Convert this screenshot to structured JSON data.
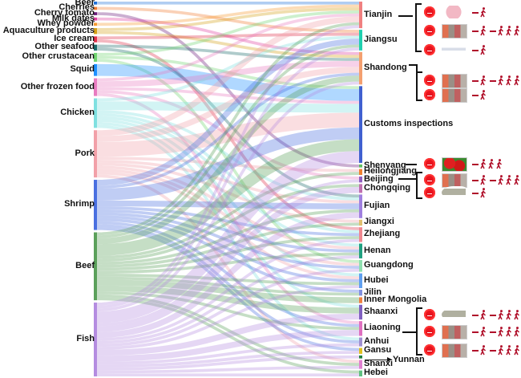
{
  "left_nodes": [
    {
      "name": "Beer",
      "color": "#1e6fd9"
    },
    {
      "name": "Cherries",
      "color": "#f07a30"
    },
    {
      "name": "Cherry tomato",
      "color": "#6a1b7a"
    },
    {
      "name": "Milk dates",
      "color": "#e040a0"
    },
    {
      "name": "Whey powder",
      "color": "#f59a30"
    },
    {
      "name": "Aquaculture products",
      "color": "#d4a017"
    },
    {
      "name": "Ice cream",
      "color": "#e0304a"
    },
    {
      "name": "Other seafood",
      "color": "#1a6b6b"
    },
    {
      "name": "Other crustacean",
      "color": "#6fd46f"
    },
    {
      "name": "Squid",
      "color": "#1e90ff"
    },
    {
      "name": "Other frozen food",
      "color": "#e87bc0"
    },
    {
      "name": "Chicken",
      "color": "#7fe0e0"
    },
    {
      "name": "Pork",
      "color": "#f2a0a8"
    },
    {
      "name": "Shrimp",
      "color": "#4a6fe0"
    },
    {
      "name": "Beef",
      "color": "#5aa05a"
    },
    {
      "name": "Fish",
      "color": "#b48ce0"
    }
  ],
  "right_nodes": [
    {
      "name": "Tianjin",
      "color": "#f08080"
    },
    {
      "name": "Jiangsu",
      "color": "#20d0b0"
    },
    {
      "name": "Shandong",
      "color": "#f4a070"
    },
    {
      "name": "Customs inspections",
      "color": "#4060d0"
    },
    {
      "name": "Shenyang",
      "color": "#60c060"
    },
    {
      "name": "Heilongjiang",
      "color": "#f08030"
    },
    {
      "name": "Beijing",
      "color": "#9060c0"
    },
    {
      "name": "Chongqing",
      "color": "#c070b0"
    },
    {
      "name": "Fujian",
      "color": "#a080e0"
    },
    {
      "name": "Jiangxi",
      "color": "#e0c070"
    },
    {
      "name": "Zhejiang",
      "color": "#f08890"
    },
    {
      "name": "Henan",
      "color": "#20a080"
    },
    {
      "name": "Guangdong",
      "color": "#90e0b0"
    },
    {
      "name": "Hubei",
      "color": "#60a0f0"
    },
    {
      "name": "Jilin",
      "color": "#8090e0"
    },
    {
      "name": "Inner Mongolia",
      "color": "#f08040"
    },
    {
      "name": "Shaanxi",
      "color": "#8060c0"
    },
    {
      "name": "Liaoning",
      "color": "#e070c0"
    },
    {
      "name": "Anhui",
      "color": "#a090d0"
    },
    {
      "name": "Gansu",
      "color": "#e0c020"
    },
    {
      "name": "Yunnan",
      "color": "#208040"
    },
    {
      "name": "Shanxi",
      "color": "#e080d0"
    },
    {
      "name": "Hebei",
      "color": "#60c080"
    }
  ],
  "links": [
    [
      "Beer",
      "Tianjin",
      1
    ],
    [
      "Cherries",
      "Jiangsu",
      1
    ],
    [
      "Cherry tomato",
      "Shenyang",
      1
    ],
    [
      "Milk dates",
      "Shandong",
      1
    ],
    [
      "Whey powder",
      "Tianjin",
      1
    ],
    [
      "Aquaculture products",
      "Shandong",
      1
    ],
    [
      "Aquaculture products",
      "Tianjin",
      1
    ],
    [
      "Ice cream",
      "Jiangsu",
      1
    ],
    [
      "Ice cream",
      "Zhejiang",
      1
    ],
    [
      "Other seafood",
      "Shandong",
      1
    ],
    [
      "Other seafood",
      "Fujian",
      1
    ],
    [
      "Other crustacean",
      "Customs inspections",
      1
    ],
    [
      "Other crustacean",
      "Tianjin",
      1
    ],
    [
      "Other crustacean",
      "Guangdong",
      1
    ],
    [
      "Squid",
      "Customs inspections",
      4
    ],
    [
      "Other frozen food",
      "Tianjin",
      1
    ],
    [
      "Other frozen food",
      "Shandong",
      2
    ],
    [
      "Other frozen food",
      "Customs inspections",
      1
    ],
    [
      "Other frozen food",
      "Liaoning",
      1
    ],
    [
      "Other frozen food",
      "Beijing",
      1
    ],
    [
      "Chicken",
      "Customs inspections",
      3
    ],
    [
      "Chicken",
      "Jiangsu",
      1
    ],
    [
      "Chicken",
      "Fujian",
      1
    ],
    [
      "Chicken",
      "Henan",
      1
    ],
    [
      "Chicken",
      "Hubei",
      1
    ],
    [
      "Chicken",
      "Shaanxi",
      1
    ],
    [
      "Chicken",
      "Anhui",
      1
    ],
    [
      "Chicken",
      "Zhejiang",
      1
    ],
    [
      "Pork",
      "Customs inspections",
      5
    ],
    [
      "Pork",
      "Tianjin",
      2
    ],
    [
      "Pork",
      "Shandong",
      2
    ],
    [
      "Pork",
      "Heilongjiang",
      1
    ],
    [
      "Pork",
      "Fujian",
      1
    ],
    [
      "Pork",
      "Jiangxi",
      1
    ],
    [
      "Pork",
      "Henan",
      1
    ],
    [
      "Pork",
      "Guangdong",
      1
    ],
    [
      "Pork",
      "Hubei",
      1
    ],
    [
      "Pork",
      "Shanxi",
      1
    ],
    [
      "Shrimp",
      "Customs inspections",
      4
    ],
    [
      "Shrimp",
      "Jiangsu",
      2
    ],
    [
      "Shrimp",
      "Shandong",
      1
    ],
    [
      "Shrimp",
      "Fujian",
      2
    ],
    [
      "Shrimp",
      "Zhejiang",
      1
    ],
    [
      "Shrimp",
      "Henan",
      1
    ],
    [
      "Shrimp",
      "Guangdong",
      1
    ],
    [
      "Shrimp",
      "Hubei",
      1
    ],
    [
      "Shrimp",
      "Jilin",
      1
    ],
    [
      "Shrimp",
      "Liaoning",
      1
    ],
    [
      "Shrimp",
      "Anhui",
      1
    ],
    [
      "Shrimp",
      "Gansu",
      1
    ],
    [
      "Beef",
      "Customs inspections",
      4
    ],
    [
      "Beef",
      "Tianjin",
      1
    ],
    [
      "Beef",
      "Jiangsu",
      1
    ],
    [
      "Beef",
      "Shandong",
      2
    ],
    [
      "Beef",
      "Heilongjiang",
      1
    ],
    [
      "Beef",
      "Chongqing",
      1
    ],
    [
      "Beef",
      "Fujian",
      1
    ],
    [
      "Beef",
      "Jiangxi",
      1
    ],
    [
      "Beef",
      "Zhejiang",
      1
    ],
    [
      "Beef",
      "Henan",
      1
    ],
    [
      "Beef",
      "Hubei",
      1
    ],
    [
      "Beef",
      "Jilin",
      1
    ],
    [
      "Beef",
      "Inner Mongolia",
      2
    ],
    [
      "Beef",
      "Shaanxi",
      2
    ],
    [
      "Beef",
      "Liaoning",
      1
    ],
    [
      "Beef",
      "Shanxi",
      1
    ],
    [
      "Beef",
      "Hebei",
      1
    ],
    [
      "Fish",
      "Customs inspections",
      4
    ],
    [
      "Fish",
      "Tianjin",
      1
    ],
    [
      "Fish",
      "Jiangsu",
      1
    ],
    [
      "Fish",
      "Shandong",
      1
    ],
    [
      "Fish",
      "Beijing",
      1
    ],
    [
      "Fish",
      "Chongqing",
      2
    ],
    [
      "Fish",
      "Fujian",
      2
    ],
    [
      "Fish",
      "Zhejiang",
      1
    ],
    [
      "Fish",
      "Henan",
      1
    ],
    [
      "Fish",
      "Guangdong",
      1
    ],
    [
      "Fish",
      "Hubei",
      1
    ],
    [
      "Fish",
      "Shaanxi",
      2
    ],
    [
      "Fish",
      "Liaoning",
      2
    ],
    [
      "Fish",
      "Anhui",
      1
    ],
    [
      "Fish",
      "Gansu",
      1
    ],
    [
      "Fish",
      "Yunnan",
      1
    ],
    [
      "Fish",
      "Shanxi",
      1
    ],
    [
      "Fish",
      "Hebei",
      1
    ]
  ],
  "annotation_label": "Yunnan",
  "colors": {
    "virus": "#e8141e",
    "person": "#b0102a"
  }
}
